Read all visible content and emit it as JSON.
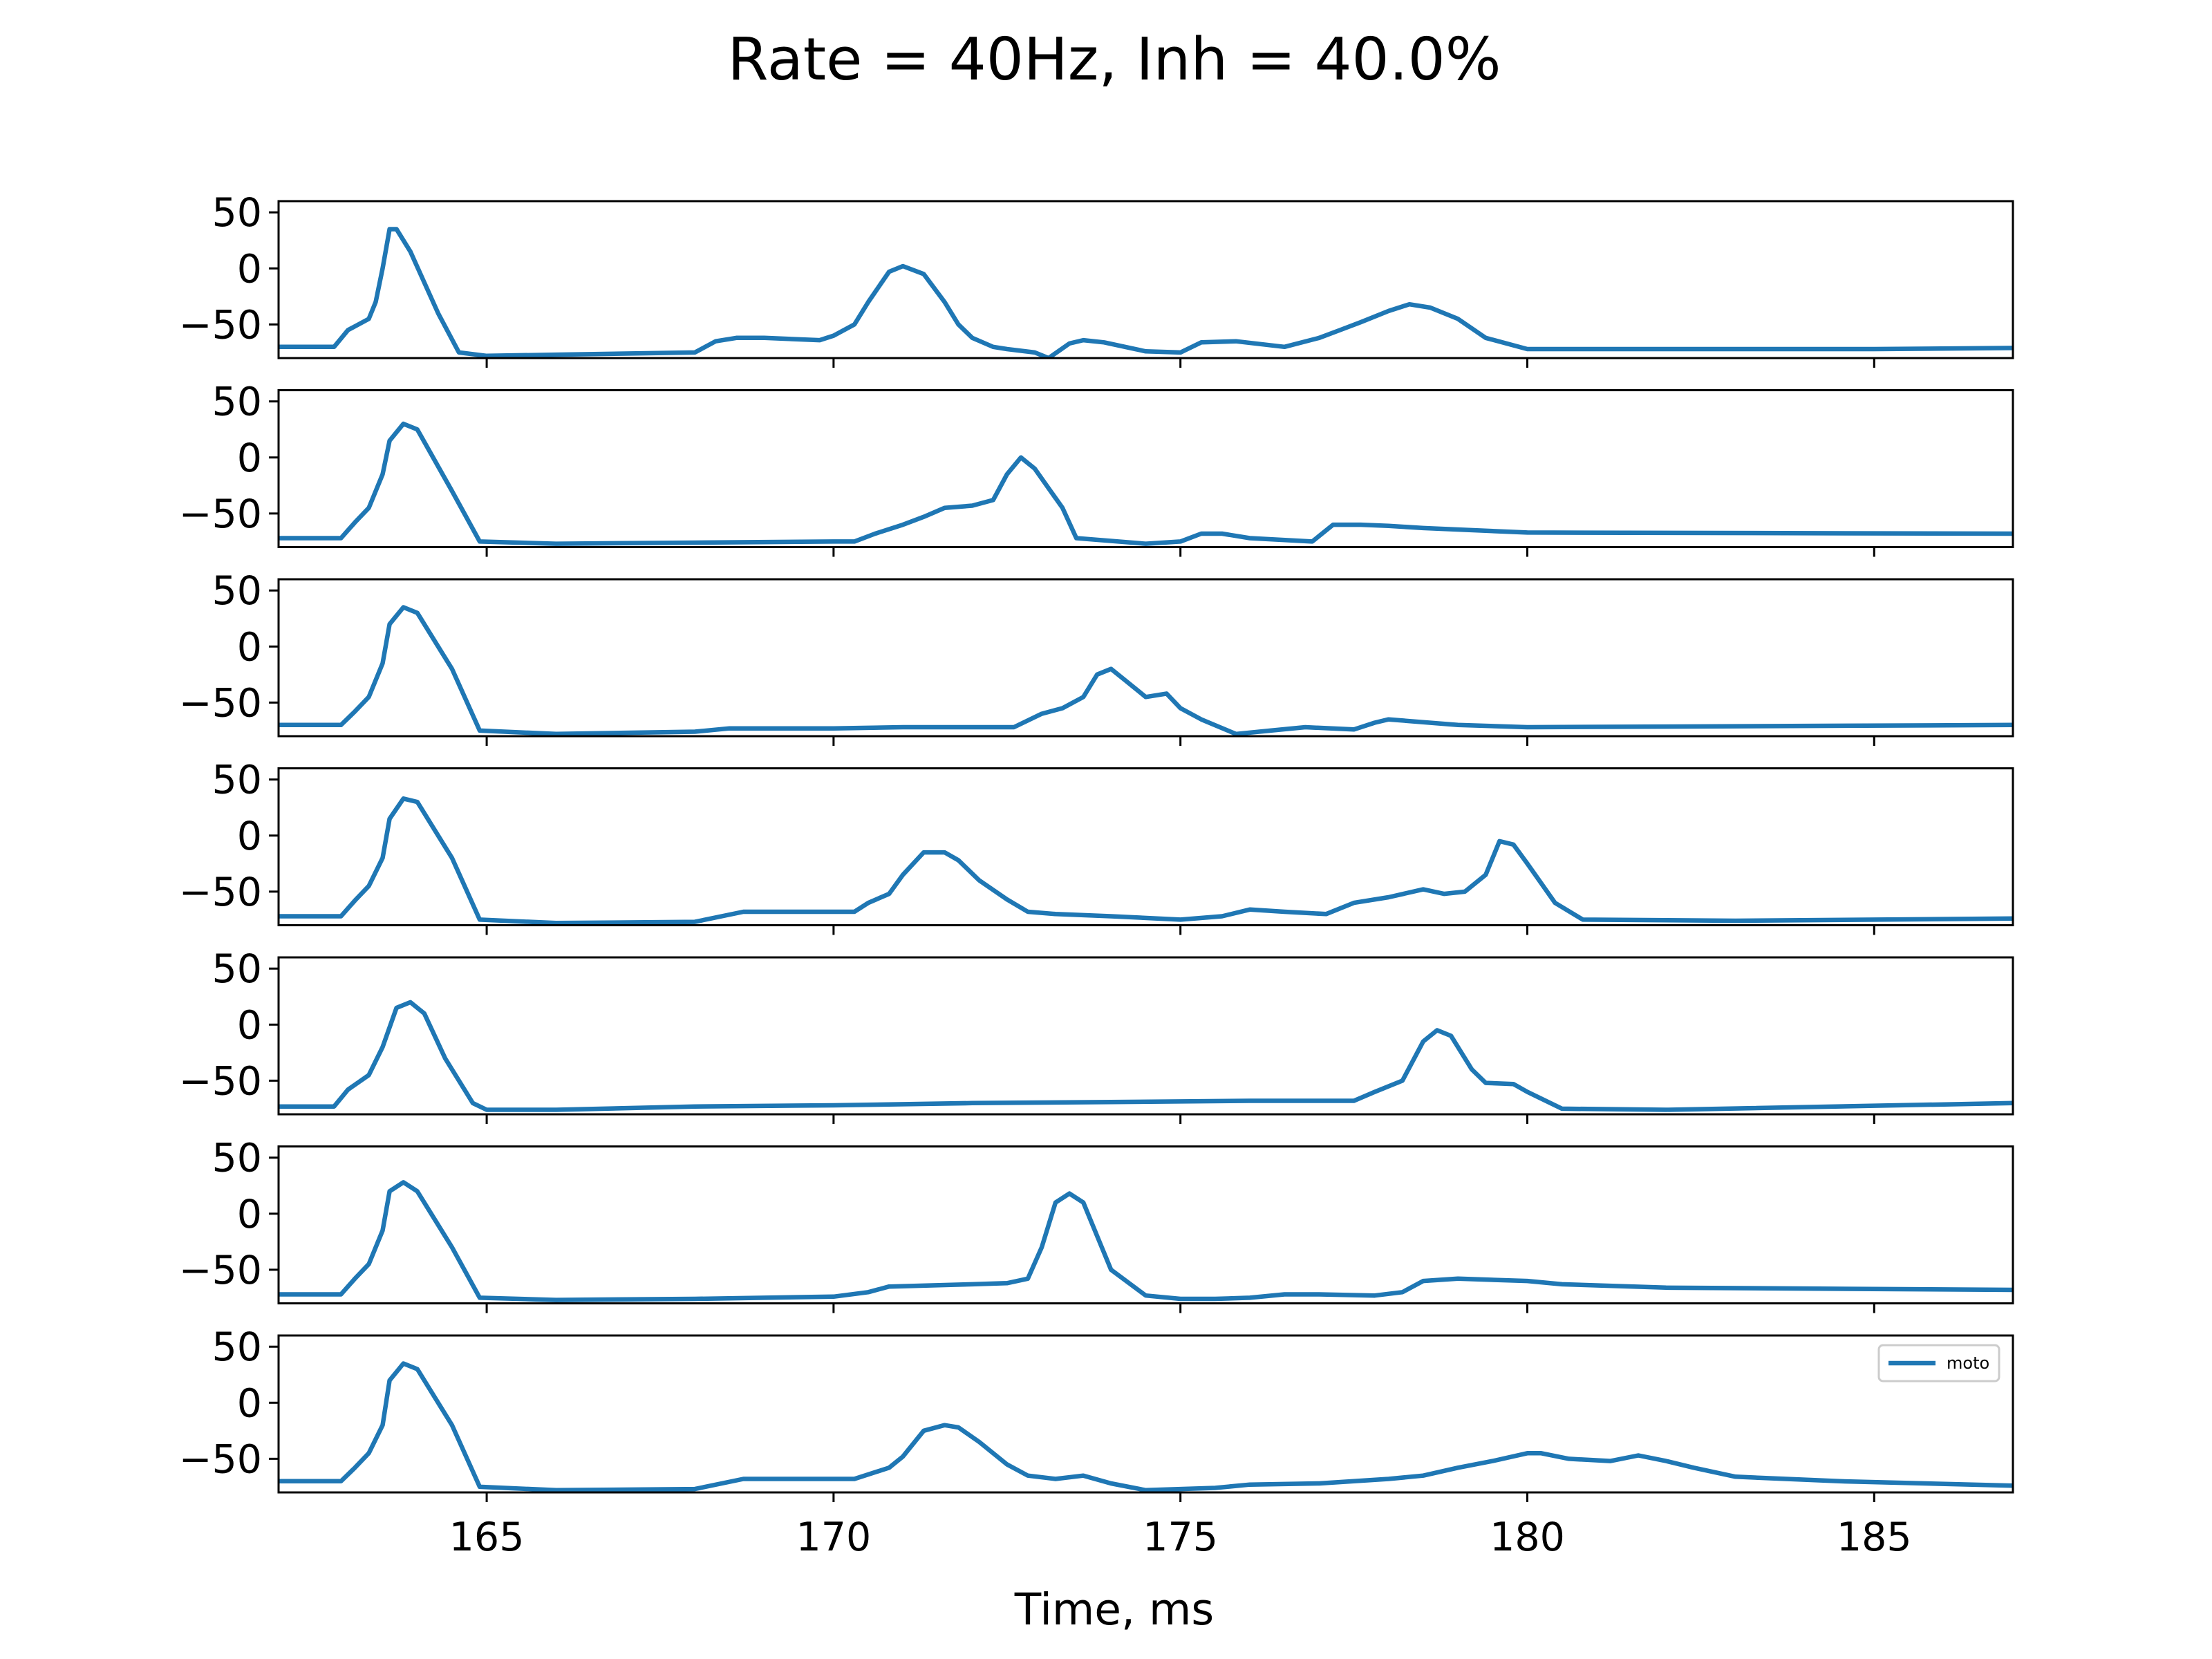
{
  "chart_data": {
    "type": "line",
    "title": "Rate = 40Hz, Inh = 40.0%",
    "xlabel": "Time, ms",
    "ylabel": "",
    "xlim": [
      162,
      187
    ],
    "ylim": [
      -80,
      60
    ],
    "xticks": [
      165,
      170,
      175,
      180,
      185
    ],
    "yticks": [
      50,
      0,
      -50
    ],
    "grid": false,
    "legend": {
      "entries": [
        "moto"
      ],
      "location": "top-right",
      "panel": 7
    },
    "line_color": "#1f77b4",
    "panels": [
      {
        "name": "moto",
        "x": [
          162.0,
          162.8,
          163.0,
          163.3,
          163.4,
          163.5,
          163.6,
          163.7,
          163.9,
          164.3,
          164.6,
          165.0,
          166.0,
          168.0,
          168.3,
          168.6,
          169.0,
          169.8,
          170.0,
          170.3,
          170.5,
          170.8,
          171.0,
          171.3,
          171.6,
          171.8,
          172.0,
          172.3,
          172.5,
          172.9,
          173.1,
          173.4,
          173.6,
          173.9,
          174.5,
          175.0,
          175.3,
          175.8,
          176.5,
          177.0,
          177.3,
          177.6,
          178.0,
          178.3,
          178.6,
          179.0,
          179.4,
          180.0,
          181.0,
          182.0,
          185.0,
          187.0
        ],
        "y": [
          -70,
          -70,
          -55,
          -45,
          -30,
          0,
          35,
          35,
          15,
          -40,
          -75,
          -78,
          -77,
          -75,
          -65,
          -62,
          -62,
          -64,
          -60,
          -50,
          -30,
          -3,
          2,
          -5,
          -30,
          -50,
          -62,
          -70,
          -72,
          -75,
          -80,
          -67,
          -64,
          -66,
          -74,
          -75,
          -66,
          -65,
          -70,
          -62,
          -55,
          -48,
          -38,
          -32,
          -35,
          -45,
          -62,
          -72,
          -72,
          -72,
          -72,
          -71
        ]
      },
      {
        "name": "moto",
        "x": [
          162.0,
          162.9,
          163.1,
          163.3,
          163.5,
          163.6,
          163.8,
          164.0,
          164.5,
          164.9,
          166.0,
          168.0,
          170.0,
          170.3,
          170.6,
          171.0,
          171.3,
          171.6,
          172.0,
          172.3,
          172.5,
          172.7,
          172.9,
          173.3,
          173.5,
          174.5,
          175.0,
          175.3,
          175.6,
          176.0,
          176.9,
          177.2,
          177.6,
          178.0,
          178.5,
          180.0,
          187.0
        ],
        "y": [
          -72,
          -72,
          -58,
          -45,
          -15,
          15,
          30,
          25,
          -30,
          -75,
          -77,
          -76,
          -75,
          -75,
          -68,
          -60,
          -53,
          -45,
          -43,
          -38,
          -15,
          0,
          -10,
          -45,
          -72,
          -77,
          -75,
          -68,
          -68,
          -72,
          -75,
          -60,
          -60,
          -61,
          -63,
          -67,
          -68
        ]
      },
      {
        "name": "moto",
        "x": [
          162.0,
          162.9,
          163.1,
          163.3,
          163.5,
          163.6,
          163.8,
          164.0,
          164.5,
          164.9,
          166.0,
          168.0,
          168.5,
          170.0,
          171.0,
          172.6,
          173.0,
          173.3,
          173.6,
          173.8,
          174.0,
          174.2,
          174.5,
          174.8,
          175.0,
          175.3,
          175.8,
          176.3,
          176.8,
          177.5,
          177.8,
          178.0,
          179.0,
          180.0,
          187.0
        ],
        "y": [
          -70,
          -70,
          -58,
          -45,
          -15,
          20,
          35,
          30,
          -20,
          -75,
          -78,
          -76,
          -73,
          -73,
          -72,
          -72,
          -60,
          -55,
          -45,
          -25,
          -20,
          -30,
          -45,
          -42,
          -55,
          -65,
          -78,
          -75,
          -72,
          -74,
          -68,
          -65,
          -70,
          -72,
          -70
        ]
      },
      {
        "name": "moto",
        "x": [
          162.0,
          162.9,
          163.1,
          163.3,
          163.5,
          163.6,
          163.8,
          164.0,
          164.5,
          164.9,
          166.0,
          168.0,
          168.7,
          170.3,
          170.5,
          170.8,
          171.0,
          171.3,
          171.6,
          171.8,
          172.1,
          172.5,
          172.8,
          173.2,
          174.0,
          175.0,
          175.6,
          176.0,
          176.5,
          177.1,
          177.5,
          178.0,
          178.5,
          178.8,
          179.1,
          179.4,
          179.6,
          179.8,
          180.0,
          180.4,
          180.8,
          183.0,
          187.0
        ],
        "y": [
          -72,
          -72,
          -58,
          -45,
          -20,
          15,
          33,
          30,
          -20,
          -75,
          -78,
          -77,
          -68,
          -68,
          -60,
          -52,
          -35,
          -15,
          -15,
          -22,
          -40,
          -57,
          -68,
          -70,
          -72,
          -75,
          -72,
          -66,
          -68,
          -70,
          -60,
          -55,
          -48,
          -52,
          -50,
          -35,
          -5,
          -8,
          -25,
          -60,
          -75,
          -76,
          -74
        ]
      },
      {
        "name": "moto",
        "x": [
          162.0,
          162.8,
          163.0,
          163.3,
          163.5,
          163.7,
          163.9,
          164.1,
          164.4,
          164.8,
          165.0,
          166.0,
          168.0,
          170.0,
          172.0,
          174.0,
          176.0,
          177.5,
          177.8,
          178.2,
          178.5,
          178.7,
          178.9,
          179.2,
          179.4,
          179.8,
          180.0,
          180.5,
          182.0,
          187.0
        ],
        "y": [
          -73,
          -73,
          -58,
          -45,
          -20,
          15,
          20,
          10,
          -30,
          -70,
          -76,
          -76,
          -73,
          -72,
          -70,
          -69,
          -68,
          -68,
          -60,
          -50,
          -15,
          -5,
          -10,
          -40,
          -52,
          -53,
          -60,
          -75,
          -76,
          -70
        ]
      },
      {
        "name": "moto",
        "x": [
          162.0,
          162.9,
          163.1,
          163.3,
          163.5,
          163.6,
          163.8,
          164.0,
          164.5,
          164.9,
          166.0,
          168.0,
          170.0,
          170.5,
          170.8,
          172.0,
          172.5,
          172.8,
          173.0,
          173.2,
          173.4,
          173.6,
          173.8,
          174.0,
          174.5,
          175.0,
          175.5,
          176.0,
          176.5,
          177.0,
          177.8,
          178.2,
          178.5,
          179.0,
          180.0,
          180.5,
          182.0,
          187.0
        ],
        "y": [
          -72,
          -72,
          -58,
          -45,
          -15,
          20,
          28,
          20,
          -30,
          -75,
          -77,
          -76,
          -74,
          -70,
          -65,
          -63,
          -62,
          -58,
          -30,
          10,
          18,
          10,
          -20,
          -50,
          -73,
          -76,
          -76,
          -75,
          -72,
          -72,
          -73,
          -70,
          -60,
          -58,
          -60,
          -63,
          -66,
          -68
        ]
      },
      {
        "name": "moto",
        "x": [
          162.0,
          162.9,
          163.1,
          163.3,
          163.5,
          163.6,
          163.8,
          164.0,
          164.5,
          164.9,
          166.0,
          168.0,
          168.7,
          170.3,
          170.8,
          171.0,
          171.3,
          171.6,
          171.8,
          172.1,
          172.5,
          172.8,
          173.2,
          173.6,
          174.0,
          174.5,
          175.0,
          175.5,
          176.0,
          177.0,
          178.0,
          178.5,
          179.0,
          179.5,
          180.0,
          180.2,
          180.6,
          181.2,
          181.6,
          182.0,
          182.4,
          183.0,
          184.5,
          187.0
        ],
        "y": [
          -70,
          -70,
          -58,
          -45,
          -20,
          20,
          35,
          30,
          -20,
          -75,
          -78,
          -77,
          -68,
          -68,
          -58,
          -48,
          -25,
          -20,
          -22,
          -35,
          -55,
          -65,
          -68,
          -65,
          -72,
          -78,
          -77,
          -76,
          -73,
          -72,
          -68,
          -65,
          -58,
          -52,
          -45,
          -45,
          -50,
          -52,
          -47,
          -52,
          -58,
          -66,
          -70,
          -74
        ]
      }
    ]
  }
}
